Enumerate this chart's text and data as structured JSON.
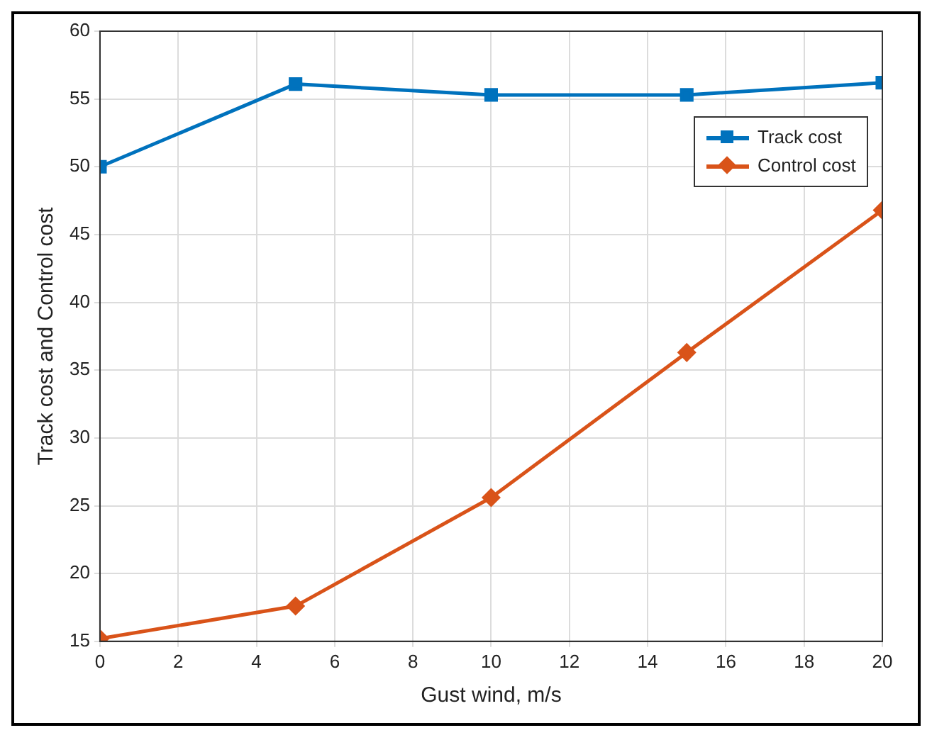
{
  "chart_data": {
    "type": "line",
    "xlabel": "Gust wind, m/s",
    "ylabel": "Track cost and Control cost",
    "x": [
      0,
      5,
      10,
      15,
      20
    ],
    "series": [
      {
        "name": "Track cost",
        "color": "#0072bd",
        "values": [
          50,
          56.1,
          55.3,
          55.3,
          56.2
        ],
        "marker": "square"
      },
      {
        "name": "Control cost",
        "color": "#d95319",
        "values": [
          15.2,
          17.6,
          25.6,
          36.3,
          46.8
        ],
        "marker": "diamond"
      }
    ],
    "xlim": [
      0,
      20
    ],
    "xticks": [
      0,
      2,
      4,
      6,
      8,
      10,
      12,
      14,
      16,
      18,
      20
    ],
    "ylim": [
      15,
      60
    ],
    "yticks": [
      15,
      20,
      25,
      30,
      35,
      40,
      45,
      50,
      55,
      60
    ],
    "grid": true,
    "legend": "top right",
    "line_style": "solid"
  }
}
